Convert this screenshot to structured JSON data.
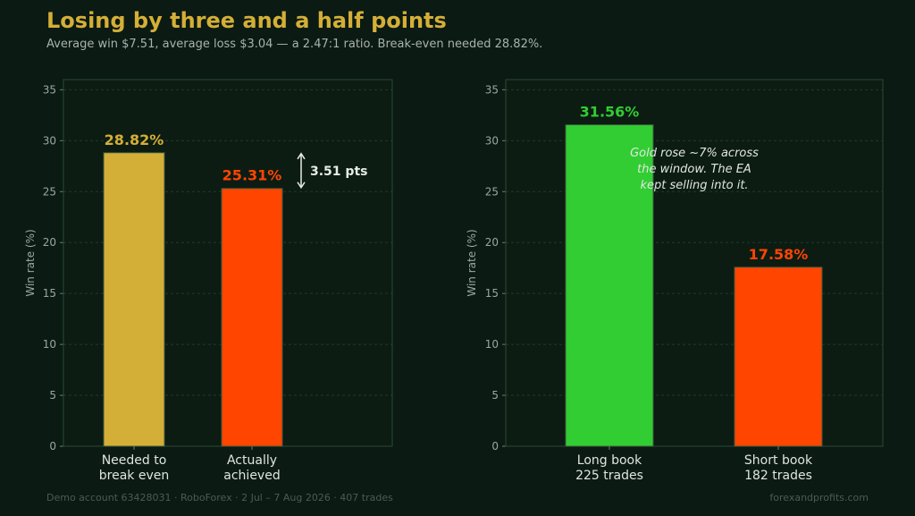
{
  "header": {
    "title": "Losing by three and a half points",
    "subtitle": "Average win $7.51, average loss $3.04 — a 2.47:1 ratio. Break-even needed 28.82%."
  },
  "footer": {
    "left": "Demo account 63428031  ·  RoboForex  ·  2 Jul – 7 Aug 2026  ·  407 trades",
    "right": "forexandprofits.com"
  },
  "colors": {
    "gold": "#d4af37",
    "red": "#ff4500",
    "green": "#32cd32",
    "background": "#0b1a12"
  },
  "chart_data": [
    {
      "type": "bar",
      "categories": [
        [
          "Needed to",
          "break even"
        ],
        [
          "Actually",
          "achieved"
        ]
      ],
      "values": [
        28.82,
        25.31
      ],
      "value_labels": [
        "28.82%",
        "25.31%"
      ],
      "bar_colors": [
        "#d4af37",
        "#ff4500"
      ],
      "ylabel": "Win rate (%)",
      "ylim": [
        0,
        36
      ],
      "yticks": [
        0,
        5,
        10,
        15,
        20,
        25,
        30,
        35
      ],
      "grid": true,
      "annotation": {
        "text": "3.51 pts",
        "from": 25.31,
        "to": 28.82
      }
    },
    {
      "type": "bar",
      "categories": [
        [
          "Long book",
          "225 trades"
        ],
        [
          "Short book",
          "182 trades"
        ]
      ],
      "values": [
        31.56,
        17.58
      ],
      "value_labels": [
        "31.56%",
        "17.58%"
      ],
      "bar_colors": [
        "#32cd32",
        "#ff4500"
      ],
      "ylabel": "Win rate (%)",
      "ylim": [
        0,
        36
      ],
      "yticks": [
        0,
        5,
        10,
        15,
        20,
        25,
        30,
        35
      ],
      "grid": true,
      "annotation": {
        "lines": [
          "Gold rose ~7% across",
          "the window. The EA",
          "kept selling into it."
        ]
      }
    }
  ]
}
